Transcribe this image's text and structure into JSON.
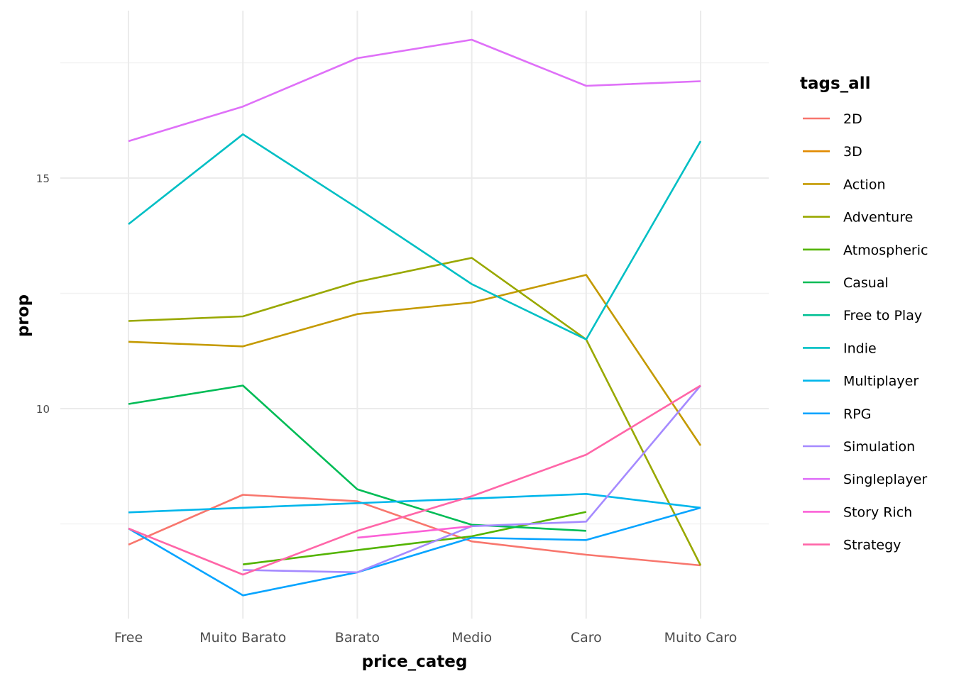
{
  "chart_data": {
    "type": "line",
    "xlabel": "price_categ",
    "ylabel": "prop",
    "categories": [
      "Free",
      "Muito Barato",
      "Barato",
      "Medio",
      "Caro",
      "Muito Caro"
    ],
    "yticks": [
      10,
      15
    ],
    "ylim": [
      5.5,
      18.3
    ],
    "grid": true,
    "legend_title": "tags_all",
    "legend_position": "right",
    "series": [
      {
        "name": "2D",
        "color": "#F8766D",
        "values": [
          7.05,
          8.13,
          7.99,
          7.12,
          6.83,
          6.6
        ]
      },
      {
        "name": "3D",
        "color": "#E18A00",
        "values": [
          null,
          null,
          null,
          null,
          null,
          null
        ]
      },
      {
        "name": "Action",
        "color": "#C49A00",
        "values": [
          11.45,
          11.35,
          12.05,
          12.3,
          12.9,
          9.2
        ]
      },
      {
        "name": "Adventure",
        "color": "#99A800",
        "values": [
          11.9,
          12.0,
          12.75,
          13.27,
          11.5,
          6.6
        ]
      },
      {
        "name": "Atmospheric",
        "color": "#53B400",
        "values": [
          null,
          6.62,
          6.93,
          7.23,
          7.76,
          null
        ]
      },
      {
        "name": "Casual",
        "color": "#00BC56",
        "values": [
          10.1,
          10.5,
          8.25,
          7.48,
          7.35,
          null
        ]
      },
      {
        "name": "Free to Play",
        "color": "#00C094",
        "values": [
          null,
          null,
          null,
          null,
          null,
          null
        ]
      },
      {
        "name": "Indie",
        "color": "#00BFC4",
        "values": [
          14.0,
          15.95,
          14.35,
          12.7,
          11.5,
          15.8
        ]
      },
      {
        "name": "Multiplayer",
        "color": "#00B6EB",
        "values": [
          7.75,
          7.85,
          7.95,
          8.05,
          8.15,
          7.85
        ]
      },
      {
        "name": "RPG",
        "color": "#06A4FF",
        "values": [
          7.4,
          5.95,
          6.45,
          7.2,
          7.15,
          7.85
        ]
      },
      {
        "name": "Simulation",
        "color": "#A58AFF",
        "values": [
          null,
          6.5,
          6.45,
          7.45,
          7.55,
          10.5
        ]
      },
      {
        "name": "Singleplayer",
        "color": "#DF70F8",
        "values": [
          15.8,
          16.55,
          17.6,
          18.0,
          17.0,
          17.1
        ]
      },
      {
        "name": "Story Rich",
        "color": "#FB61D7",
        "values": [
          null,
          null,
          7.2,
          7.45,
          null,
          null
        ]
      },
      {
        "name": "Strategy",
        "color": "#FF66A8",
        "values": [
          7.4,
          6.4,
          7.35,
          8.1,
          9.0,
          10.5
        ]
      }
    ]
  }
}
